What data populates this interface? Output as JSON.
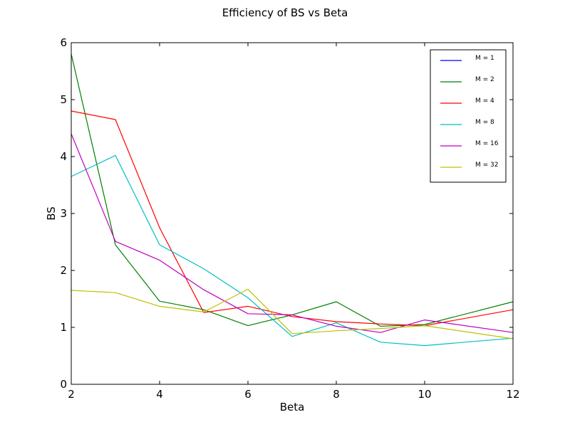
{
  "chart_data": {
    "type": "line",
    "title": "Efficiency of BS vs Beta",
    "xlabel": "Beta",
    "ylabel": "BS",
    "xlim": [
      2,
      12
    ],
    "ylim": [
      0,
      6
    ],
    "xticks": [
      2,
      4,
      6,
      8,
      10,
      12
    ],
    "yticks": [
      0,
      1,
      2,
      3,
      4,
      5,
      6
    ],
    "grid": false,
    "legend_position": "top-right",
    "x": [
      2,
      3,
      4,
      5,
      6,
      7,
      8,
      9,
      10,
      12
    ],
    "series": [
      {
        "name": "M = 1",
        "color": "#0000ff",
        "values": [
          null,
          null,
          null,
          null,
          null,
          null,
          null,
          null,
          null,
          null
        ]
      },
      {
        "name": "M = 2",
        "color": "#008000",
        "values": [
          5.8,
          2.45,
          1.46,
          1.31,
          1.03,
          1.22,
          1.45,
          1.02,
          1.05,
          1.45
        ]
      },
      {
        "name": "M = 4",
        "color": "#ff0000",
        "values": [
          4.8,
          4.65,
          2.75,
          1.26,
          1.37,
          1.19,
          1.1,
          1.06,
          1.03,
          1.31
        ]
      },
      {
        "name": "M = 8",
        "color": "#00bfbf",
        "values": [
          3.65,
          4.02,
          2.45,
          2.03,
          1.52,
          0.84,
          1.08,
          0.74,
          0.68,
          0.81
        ]
      },
      {
        "name": "M = 16",
        "color": "#bf00bf",
        "values": [
          4.4,
          2.51,
          2.18,
          1.66,
          1.24,
          1.22,
          1.02,
          0.91,
          1.13,
          0.91
        ]
      },
      {
        "name": "M = 32",
        "color": "#bfbf00",
        "values": [
          1.65,
          1.61,
          1.37,
          1.27,
          1.67,
          0.89,
          0.94,
          0.98,
          1.03,
          0.8
        ]
      }
    ]
  }
}
